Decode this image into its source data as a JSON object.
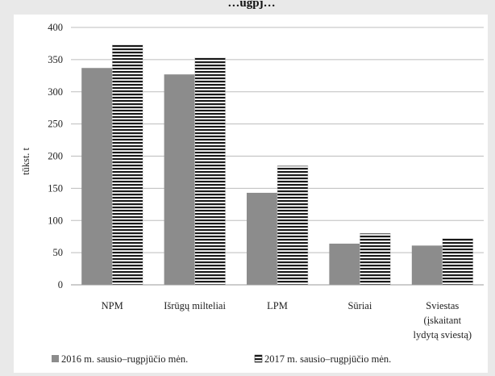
{
  "chart_data": {
    "type": "bar",
    "title": "…ugpj…",
    "ylabel": "tūkst. t",
    "xlabel": "",
    "ylim": [
      0,
      400
    ],
    "yticks": [
      0,
      50,
      100,
      150,
      200,
      250,
      300,
      350,
      400
    ],
    "grid": true,
    "legend_position": "bottom",
    "categories": [
      [
        "NPM"
      ],
      [
        "Išrūgų milteliai"
      ],
      [
        "LPM"
      ],
      [
        "Sūriai"
      ],
      [
        "Sviestas",
        "(įskaitant",
        "lydytą sviestą)"
      ]
    ],
    "series": [
      {
        "name": "2016 m. sausio–rugpjūčio mėn.",
        "values": [
          337,
          327,
          143,
          64,
          61
        ],
        "color": "#8c8c8c",
        "pattern": "solid"
      },
      {
        "name": "2017 m. sausio–rugpjūčio mėn.",
        "values": [
          373,
          353,
          185,
          80,
          72
        ],
        "color": "#1a1a1a",
        "pattern": "horizontal-stripes"
      }
    ]
  }
}
